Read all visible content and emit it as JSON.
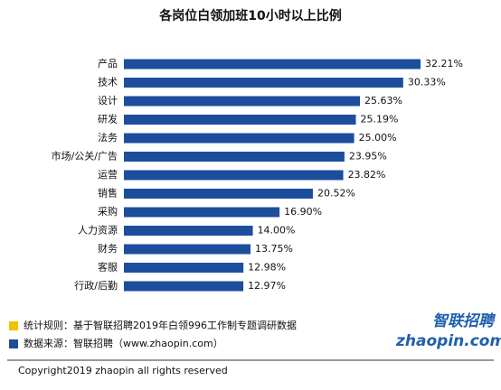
{
  "chart_data": {
    "type": "bar",
    "orientation": "horizontal",
    "title": "各岗位白领加班10小时以上比例",
    "categories": [
      "产品",
      "技术",
      "设计",
      "研发",
      "法务",
      "市场/公关/广告",
      "运营",
      "销售",
      "采购",
      "人力资源",
      "财务",
      "客服",
      "行政/后勤"
    ],
    "values": [
      32.21,
      30.33,
      25.63,
      25.19,
      25.0,
      23.95,
      23.82,
      20.52,
      16.9,
      14.0,
      13.75,
      12.98,
      12.97
    ],
    "value_labels": [
      "32.21%",
      "30.33%",
      "25.63%",
      "25.19%",
      "25.00%",
      "23.95%",
      "23.82%",
      "20.52%",
      "16.90%",
      "14.00%",
      "13.75%",
      "12.98%",
      "12.97%"
    ],
    "color": "#1c4e9c"
  },
  "footer": {
    "notes": [
      {
        "text": "统计规则：基于智联招聘2019年白领996工作制专题调研数据",
        "color": "#f2c200"
      },
      {
        "text": "数据来源：智联招聘（www.zhaopin.com）",
        "color": "#1c4e9c"
      }
    ],
    "copyright": "Copyright2019 zhaopin all rights reserved"
  },
  "logo": {
    "name": "智联招聘",
    "site": "zhaopin.com"
  }
}
